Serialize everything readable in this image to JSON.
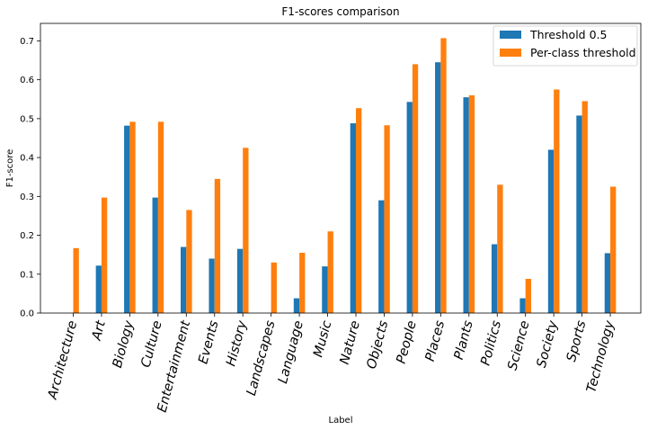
{
  "chart_data": {
    "type": "bar",
    "title": "F1-scores comparison",
    "xlabel": "Label",
    "ylabel": "F1-score",
    "ylim": [
      0,
      0.745
    ],
    "yticks": [
      0.0,
      0.1,
      0.2,
      0.3,
      0.4,
      0.5,
      0.6,
      0.7
    ],
    "ytick_labels": [
      "0.0",
      "0.1",
      "0.2",
      "0.3",
      "0.4",
      "0.5",
      "0.6",
      "0.7"
    ],
    "legend_position": "top-right",
    "grid": false,
    "categories": [
      "Architecture",
      "Art",
      "Biology",
      "Culture",
      "Entertainment",
      "Events",
      "History",
      "Landscapes",
      "Language",
      "Music",
      "Nature",
      "Objects",
      "People",
      "Places",
      "Plants",
      "Politics",
      "Science",
      "Society",
      "Sports",
      "Technology"
    ],
    "series": [
      {
        "name": "Threshold 0.5",
        "color": "#1f77b4",
        "values": [
          0.0,
          0.122,
          0.482,
          0.297,
          0.17,
          0.14,
          0.165,
          0.0,
          0.038,
          0.12,
          0.488,
          0.29,
          0.543,
          0.645,
          0.555,
          0.177,
          0.038,
          0.42,
          0.508,
          0.154
        ]
      },
      {
        "name": "Per-class threshold",
        "color": "#ff7f0e",
        "values": [
          0.167,
          0.297,
          0.492,
          0.492,
          0.265,
          0.345,
          0.425,
          0.13,
          0.155,
          0.21,
          0.527,
          0.483,
          0.64,
          0.707,
          0.56,
          0.33,
          0.088,
          0.575,
          0.545,
          0.325
        ]
      }
    ]
  }
}
